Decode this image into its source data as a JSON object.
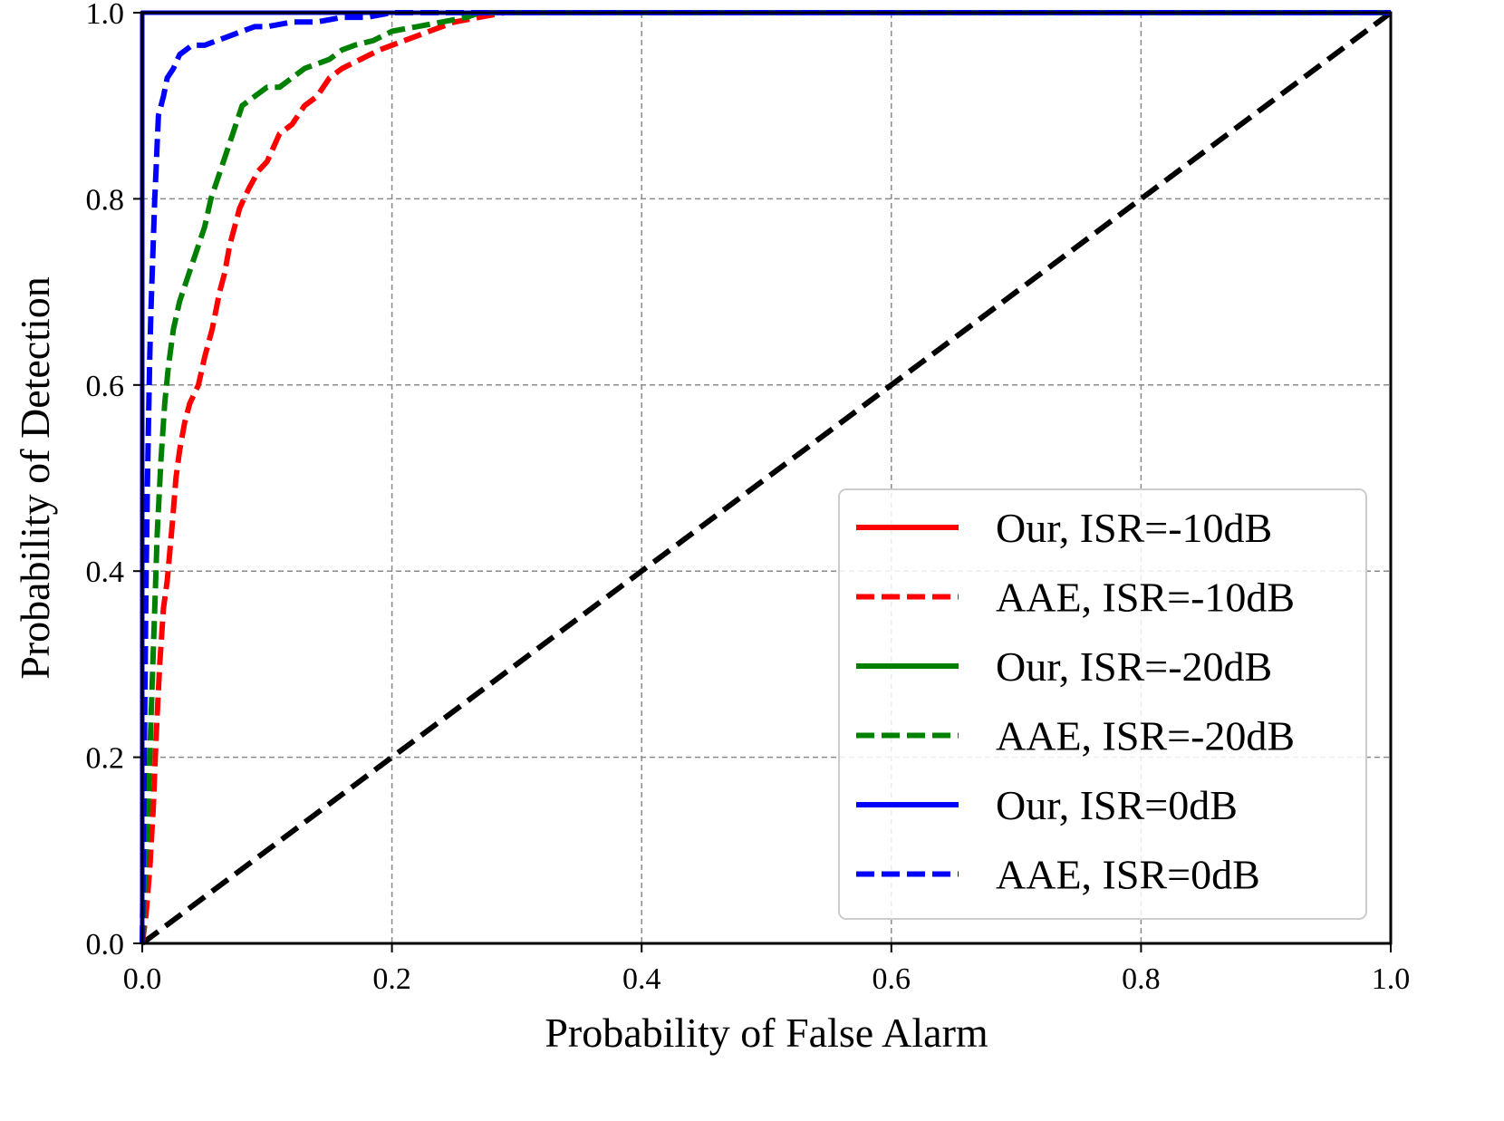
{
  "chart_data": {
    "type": "line",
    "title": "",
    "xlabel": "Probability of False Alarm",
    "ylabel": "Probability of Detection",
    "xlim": [
      0.0,
      1.0
    ],
    "ylim": [
      0.0,
      1.0
    ],
    "x_ticks": [
      "0.0",
      "0.2",
      "0.4",
      "0.6",
      "0.8",
      "1.0"
    ],
    "y_ticks": [
      "0.0",
      "0.2",
      "0.4",
      "0.6",
      "0.8",
      "1.0"
    ],
    "grid": true,
    "legend_position": "lower-right",
    "series": [
      {
        "name": "Our, ISR=-10dB",
        "color": "#ff0000",
        "style": "solid",
        "x": [
          0.0,
          0.0,
          1.0
        ],
        "y": [
          0.0,
          1.0,
          1.0
        ]
      },
      {
        "name": "AAE, ISR=-10dB",
        "color": "#ff0000",
        "style": "dashed",
        "x": [
          0.0,
          0.003,
          0.006,
          0.009,
          0.011,
          0.014,
          0.017,
          0.02,
          0.024,
          0.027,
          0.03,
          0.034,
          0.038,
          0.045,
          0.05,
          0.056,
          0.062,
          0.066,
          0.07,
          0.078,
          0.085,
          0.093,
          0.1,
          0.11,
          0.12,
          0.13,
          0.14,
          0.15,
          0.16,
          0.175,
          0.19,
          0.21,
          0.23,
          0.25,
          0.27,
          0.29,
          0.3,
          1.0
        ],
        "y": [
          0.0,
          0.03,
          0.08,
          0.15,
          0.22,
          0.3,
          0.36,
          0.39,
          0.45,
          0.5,
          0.53,
          0.56,
          0.58,
          0.6,
          0.63,
          0.66,
          0.7,
          0.72,
          0.75,
          0.79,
          0.81,
          0.83,
          0.84,
          0.87,
          0.88,
          0.9,
          0.91,
          0.93,
          0.94,
          0.95,
          0.96,
          0.97,
          0.98,
          0.99,
          0.995,
          1.0,
          1.0,
          1.0
        ]
      },
      {
        "name": "Our, ISR=-20dB",
        "color": "#008000",
        "style": "solid",
        "x": [
          0.0,
          0.0,
          1.0
        ],
        "y": [
          0.0,
          1.0,
          1.0
        ]
      },
      {
        "name": "AAE, ISR=-20dB",
        "color": "#008000",
        "style": "dashed",
        "x": [
          0.0,
          0.002,
          0.004,
          0.006,
          0.008,
          0.01,
          0.012,
          0.015,
          0.018,
          0.021,
          0.025,
          0.03,
          0.035,
          0.04,
          0.045,
          0.05,
          0.055,
          0.06,
          0.065,
          0.07,
          0.075,
          0.08,
          0.09,
          0.1,
          0.11,
          0.12,
          0.13,
          0.14,
          0.15,
          0.16,
          0.17,
          0.185,
          0.2,
          0.22,
          0.24,
          0.26,
          0.27,
          1.0
        ],
        "y": [
          0.0,
          0.06,
          0.12,
          0.2,
          0.28,
          0.36,
          0.44,
          0.52,
          0.58,
          0.62,
          0.66,
          0.69,
          0.71,
          0.73,
          0.75,
          0.77,
          0.8,
          0.82,
          0.84,
          0.86,
          0.88,
          0.9,
          0.91,
          0.92,
          0.92,
          0.93,
          0.94,
          0.945,
          0.95,
          0.96,
          0.965,
          0.97,
          0.98,
          0.985,
          0.99,
          0.995,
          1.0,
          1.0
        ]
      },
      {
        "name": "Our, ISR=0dB",
        "color": "#0000ff",
        "style": "solid",
        "x": [
          0.0,
          0.0,
          1.0
        ],
        "y": [
          0.0,
          1.0,
          1.0
        ]
      },
      {
        "name": "AAE, ISR=0dB",
        "color": "#0000ff",
        "style": "dashed",
        "x": [
          0.0,
          0.001,
          0.002,
          0.003,
          0.004,
          0.005,
          0.006,
          0.007,
          0.008,
          0.009,
          0.01,
          0.011,
          0.012,
          0.013,
          0.015,
          0.017,
          0.02,
          0.025,
          0.03,
          0.035,
          0.04,
          0.05,
          0.06,
          0.07,
          0.08,
          0.09,
          0.1,
          0.12,
          0.14,
          0.16,
          0.18,
          0.2,
          0.22,
          1.0
        ],
        "y": [
          0.0,
          0.12,
          0.25,
          0.38,
          0.48,
          0.56,
          0.63,
          0.68,
          0.72,
          0.76,
          0.8,
          0.83,
          0.86,
          0.89,
          0.9,
          0.91,
          0.93,
          0.94,
          0.955,
          0.96,
          0.965,
          0.965,
          0.97,
          0.975,
          0.98,
          0.985,
          0.985,
          0.99,
          0.99,
          0.995,
          0.995,
          1.0,
          1.0,
          1.0
        ]
      },
      {
        "name": "",
        "color": "#000000",
        "style": "dashed",
        "x": [
          0.0,
          1.0
        ],
        "y": [
          0.0,
          1.0
        ]
      }
    ],
    "legend": [
      {
        "label": "Our, ISR=-10dB",
        "color": "#ff0000",
        "style": "solid"
      },
      {
        "label": "AAE, ISR=-10dB",
        "color": "#ff0000",
        "style": "dashed"
      },
      {
        "label": "Our, ISR=-20dB",
        "color": "#008000",
        "style": "solid"
      },
      {
        "label": "AAE, ISR=-20dB",
        "color": "#008000",
        "style": "dashed"
      },
      {
        "label": "Our, ISR=0dB",
        "color": "#0000ff",
        "style": "solid"
      },
      {
        "label": "AAE, ISR=0dB",
        "color": "#0000ff",
        "style": "dashed"
      }
    ]
  }
}
